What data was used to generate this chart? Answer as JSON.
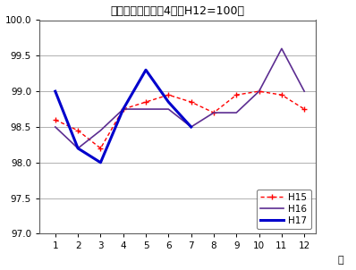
{
  "title": "総合指数の動き　4市（H12=100）",
  "xlabel": "月",
  "ylim": [
    97.0,
    100.0
  ],
  "yticks": [
    97.0,
    97.5,
    98.0,
    98.5,
    99.0,
    99.5,
    100.0
  ],
  "xticks": [
    1,
    2,
    3,
    4,
    5,
    6,
    7,
    8,
    9,
    10,
    11,
    12
  ],
  "months": [
    1,
    2,
    3,
    4,
    5,
    6,
    7,
    8,
    9,
    10,
    11,
    12
  ],
  "H15": [
    98.6,
    98.45,
    98.2,
    98.75,
    98.85,
    98.95,
    98.85,
    98.7,
    98.95,
    99.0,
    98.95,
    98.75
  ],
  "H16": [
    98.5,
    98.2,
    98.45,
    98.75,
    98.75,
    98.75,
    98.5,
    98.7,
    98.7,
    99.0,
    99.6,
    99.0
  ],
  "H17": [
    99.0,
    98.2,
    98.0,
    98.75,
    99.3,
    98.85,
    98.5,
    null,
    null,
    null,
    null,
    null
  ],
  "color_H15": "#ff0000",
  "color_H16": "#5c2d91",
  "color_H17": "#0000cc",
  "bg_color": "#ffffff",
  "grid_color": "#b0b0b0",
  "border_color": "#606060"
}
